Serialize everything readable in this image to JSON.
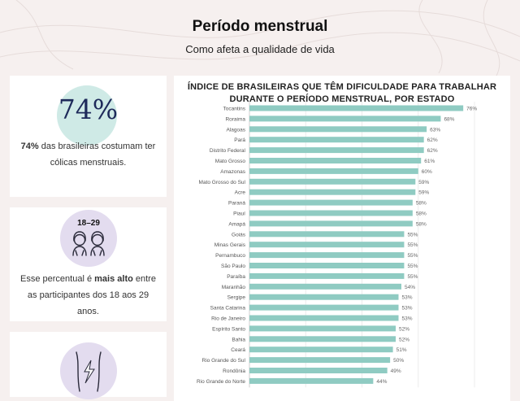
{
  "header": {
    "title": "Período menstrual",
    "subtitle": "Como afeta a qualidade de vida"
  },
  "cards": {
    "stat": {
      "number": "74%",
      "text_bold": "74%",
      "text_rest": " das brasileiras costumam ter cólicas menstruais."
    },
    "age": {
      "label": "18–29",
      "text_before": "Esse percentual é ",
      "text_bold": "mais alto",
      "text_after": " entre as participantes dos 18 aos 29 anos."
    }
  },
  "colors": {
    "bar": "#8fcbc2",
    "background": "#f6f0ef",
    "accent_teal": "#cfeae6",
    "accent_lavender": "#e3dcef",
    "stat_text": "#1e2a5a"
  },
  "chart_data": {
    "type": "bar",
    "orientation": "horizontal",
    "title_lines": [
      "ÍNDICE DE BRASILEIRAS QUE TÊM DIFICULDADE PARA TRABALHAR",
      "DURANTE O PERÍODO MENSTRUAL, POR ESTADO"
    ],
    "categories": [
      "Tocantins",
      "Roraima",
      "Alagoas",
      "Pará",
      "Distrito Federal",
      "Mato Grosso",
      "Amazonas",
      "Mato Grosso do Sul",
      "Acre",
      "Paraná",
      "Piauí",
      "Amapá",
      "Goiás",
      "Minas Gerais",
      "Pernambuco",
      "São Paulo",
      "Paraíba",
      "Maranhão",
      "Sergipe",
      "Santa Catarina",
      "Rio de Janeiro",
      "Espírito Santo",
      "Bahia",
      "Ceará",
      "Rio Grande do Sul",
      "Rondônia",
      "Rio Grande do Norte"
    ],
    "values": [
      76,
      68,
      63,
      62,
      62,
      61,
      60,
      59,
      59,
      58,
      58,
      58,
      55,
      55,
      55,
      55,
      55,
      54,
      53,
      53,
      53,
      52,
      52,
      51,
      50,
      49,
      44
    ],
    "value_labels": [
      "76%",
      "68%",
      "63%",
      "62%",
      "62%",
      "61%",
      "60%",
      "59%",
      "59%",
      "58%",
      "58%",
      "58%",
      "55%",
      "55%",
      "55%",
      "55%",
      "55%",
      "54%",
      "53%",
      "53%",
      "53%",
      "52%",
      "52%",
      "51%",
      "50%",
      "49%",
      "44%"
    ],
    "xlim": [
      0,
      80
    ],
    "grid": true
  }
}
